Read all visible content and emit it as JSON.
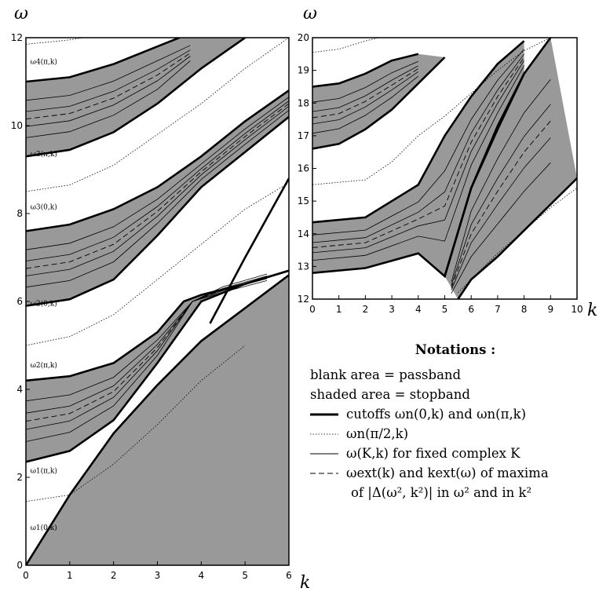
{
  "chart_data": [
    {
      "type": "line",
      "panel": "left",
      "xlabel": "k",
      "ylabel": "ω",
      "xlim": [
        0,
        6
      ],
      "ylim": [
        0,
        12
      ],
      "xticks": [
        "0",
        "1",
        "2",
        "3",
        "4",
        "5",
        "6"
      ],
      "yticks": [
        "0",
        "2",
        "4",
        "6",
        "8",
        "10",
        "12"
      ],
      "annotations": [
        {
          "text": "ω1(0,k)",
          "x": 0.1,
          "y": 0.8
        },
        {
          "text": "ω1(π,k)",
          "x": 0.1,
          "y": 2.1
        },
        {
          "text": "ω2(π,k)",
          "x": 0.1,
          "y": 4.5
        },
        {
          "text": "ω2(0,k)",
          "x": 0.1,
          "y": 5.9
        },
        {
          "text": "ω3(0,k)",
          "x": 0.1,
          "y": 8.1
        },
        {
          "text": "ω3(π,k)",
          "x": 0.1,
          "y": 9.3
        },
        {
          "text": "ω4(π,k)",
          "x": 0.1,
          "y": 11.4
        }
      ],
      "stopbands": [
        {
          "lower": [
            [
              0,
              2.35
            ],
            [
              1,
              2.6
            ],
            [
              2,
              3.3
            ],
            [
              3,
              4.6
            ],
            [
              4,
              6.0
            ],
            [
              5,
              6.4
            ],
            [
              6,
              6.7
            ]
          ],
          "upper": [
            [
              0,
              4.2
            ],
            [
              1,
              4.3
            ],
            [
              2,
              4.6
            ],
            [
              3,
              5.3
            ],
            [
              3.6,
              6.0
            ],
            [
              4,
              6.15
            ],
            [
              5,
              6.4
            ],
            [
              6,
              6.7
            ]
          ]
        },
        {
          "lower": [
            [
              0,
              5.9
            ],
            [
              1,
              6.05
            ],
            [
              2,
              6.5
            ],
            [
              3,
              7.5
            ],
            [
              4,
              8.6
            ],
            [
              5,
              9.4
            ],
            [
              6,
              10.2
            ]
          ],
          "upper": [
            [
              0,
              7.6
            ],
            [
              1,
              7.75
            ],
            [
              2,
              8.1
            ],
            [
              3,
              8.6
            ],
            [
              4,
              9.3
            ],
            [
              5,
              10.1
            ],
            [
              6,
              10.8
            ]
          ]
        },
        {
          "lower": [
            [
              0,
              9.3
            ],
            [
              1,
              9.45
            ],
            [
              2,
              9.85
            ],
            [
              3,
              10.5
            ],
            [
              4,
              11.3
            ],
            [
              5,
              12.0
            ]
          ],
          "upper": [
            [
              0,
              11.0
            ],
            [
              1,
              11.1
            ],
            [
              2,
              11.4
            ],
            [
              3,
              11.8
            ],
            [
              3.5,
              12.0
            ]
          ]
        },
        {
          "lower": [
            [
              0,
              0
            ],
            [
              1,
              1.6
            ],
            [
              2,
              3.0
            ],
            [
              3,
              4.1
            ],
            [
              4,
              5.1
            ],
            [
              5,
              5.85
            ],
            [
              6,
              6.6
            ]
          ],
          "upper": [
            [
              0,
              12
            ],
            [
              6,
              12
            ]
          ],
          "region": "below-diagonal",
          "boundary": [
            [
              0,
              0
            ],
            [
              1,
              1.6
            ],
            [
              2,
              3.0
            ],
            [
              3,
              4.1
            ],
            [
              4,
              5.1
            ],
            [
              5,
              5.85
            ],
            [
              6,
              6.6
            ]
          ],
          "boundary2": [
            [
              4.2,
              5.5
            ],
            [
              5,
              7.0
            ],
            [
              6,
              8.8
            ]
          ]
        }
      ],
      "dotted": [
        [
          [
            0,
            1.45
          ],
          [
            1,
            1.6
          ],
          [
            2,
            2.3
          ],
          [
            3,
            3.2
          ],
          [
            4,
            4.2
          ],
          [
            5,
            5.0
          ]
        ],
        [
          [
            0,
            5.0
          ],
          [
            1,
            5.2
          ],
          [
            2,
            5.7
          ],
          [
            3,
            6.5
          ],
          [
            4,
            7.3
          ],
          [
            5,
            8.1
          ],
          [
            6,
            8.7
          ]
        ],
        [
          [
            0,
            8.5
          ],
          [
            1,
            8.65
          ],
          [
            2,
            9.1
          ],
          [
            3,
            9.8
          ],
          [
            4,
            10.5
          ],
          [
            5,
            11.3
          ],
          [
            6,
            12.0
          ]
        ],
        [
          [
            0,
            11.85
          ],
          [
            1,
            11.95
          ],
          [
            1.3,
            12.0
          ]
        ]
      ]
    },
    {
      "type": "line",
      "panel": "right",
      "xlabel": "k",
      "ylabel": "ω",
      "xlim": [
        0,
        10
      ],
      "ylim": [
        12,
        20
      ],
      "xticks": [
        "0",
        "1",
        "2",
        "3",
        "4",
        "5",
        "6",
        "7",
        "8",
        "9",
        "10"
      ],
      "yticks": [
        "12",
        "13",
        "14",
        "15",
        "16",
        "17",
        "18",
        "19",
        "20"
      ],
      "stopbands": [
        {
          "lower": [
            [
              0,
              12.8
            ],
            [
              2,
              12.95
            ],
            [
              4,
              13.4
            ],
            [
              5,
              12.7
            ],
            [
              6,
              15.4
            ],
            [
              7,
              17.2
            ],
            [
              8,
              18.9
            ]
          ],
          "upper": [
            [
              0,
              14.35
            ],
            [
              2,
              14.5
            ],
            [
              4,
              15.5
            ],
            [
              5,
              17.0
            ],
            [
              6,
              18.2
            ],
            [
              7,
              19.2
            ],
            [
              8,
              19.9
            ]
          ]
        },
        {
          "lower": [
            [
              0,
              16.6
            ],
            [
              1,
              16.75
            ],
            [
              2,
              17.2
            ],
            [
              3,
              17.8
            ],
            [
              4,
              18.6
            ],
            [
              5,
              19.4
            ]
          ],
          "upper": [
            [
              0,
              18.5
            ],
            [
              1,
              18.6
            ],
            [
              2,
              18.9
            ],
            [
              3,
              19.3
            ],
            [
              4,
              19.5
            ]
          ]
        },
        {
          "lower": [
            [
              5.5,
              12
            ],
            [
              6,
              12.6
            ],
            [
              7,
              13.3
            ],
            [
              8,
              14.1
            ],
            [
              9,
              14.9
            ],
            [
              10,
              15.7
            ]
          ],
          "upper": [
            [
              5,
              12.7
            ],
            [
              6,
              15.4
            ],
            [
              7,
              17.3
            ],
            [
              8,
              18.9
            ],
            [
              9,
              20.0
            ]
          ]
        }
      ],
      "dotted": [
        [
          [
            0,
            15.5
          ],
          [
            2,
            15.65
          ],
          [
            3,
            16.2
          ],
          [
            4,
            17.0
          ],
          [
            5,
            17.6
          ],
          [
            6,
            18.3
          ],
          [
            7,
            19.0
          ],
          [
            8,
            19.6
          ],
          [
            9,
            20.0
          ]
        ],
        [
          [
            0,
            19.55
          ],
          [
            1,
            19.65
          ],
          [
            2,
            19.9
          ],
          [
            2.5,
            20.0
          ]
        ],
        [
          [
            5.5,
            12.2
          ],
          [
            6,
            12.6
          ],
          [
            7,
            13.4
          ],
          [
            8,
            14.1
          ],
          [
            9,
            14.8
          ],
          [
            10,
            15.4
          ]
        ]
      ]
    }
  ],
  "notations": {
    "title": "Notations :",
    "lines": [
      {
        "text": "blank area  =  passband",
        "style": "none"
      },
      {
        "text": "shaded area  =  stopband",
        "style": "none"
      },
      {
        "text": "cutoffs ωn(0,k) and ωn(π,k)",
        "style": "thick"
      },
      {
        "text": "ωn(π/2,k)",
        "style": "dotted"
      },
      {
        "text": "ω(K,k) for fixed complex K",
        "style": "thin"
      },
      {
        "text": "ωext(k) and kext(ω) of maxima",
        "style": "dashed"
      },
      {
        "text": "of |Δ(ω², k²)| in ω² and in k²",
        "style": "indent"
      }
    ]
  },
  "colors": {
    "stopband": "#999999",
    "passband": "#ffffff",
    "line": "#000000"
  }
}
